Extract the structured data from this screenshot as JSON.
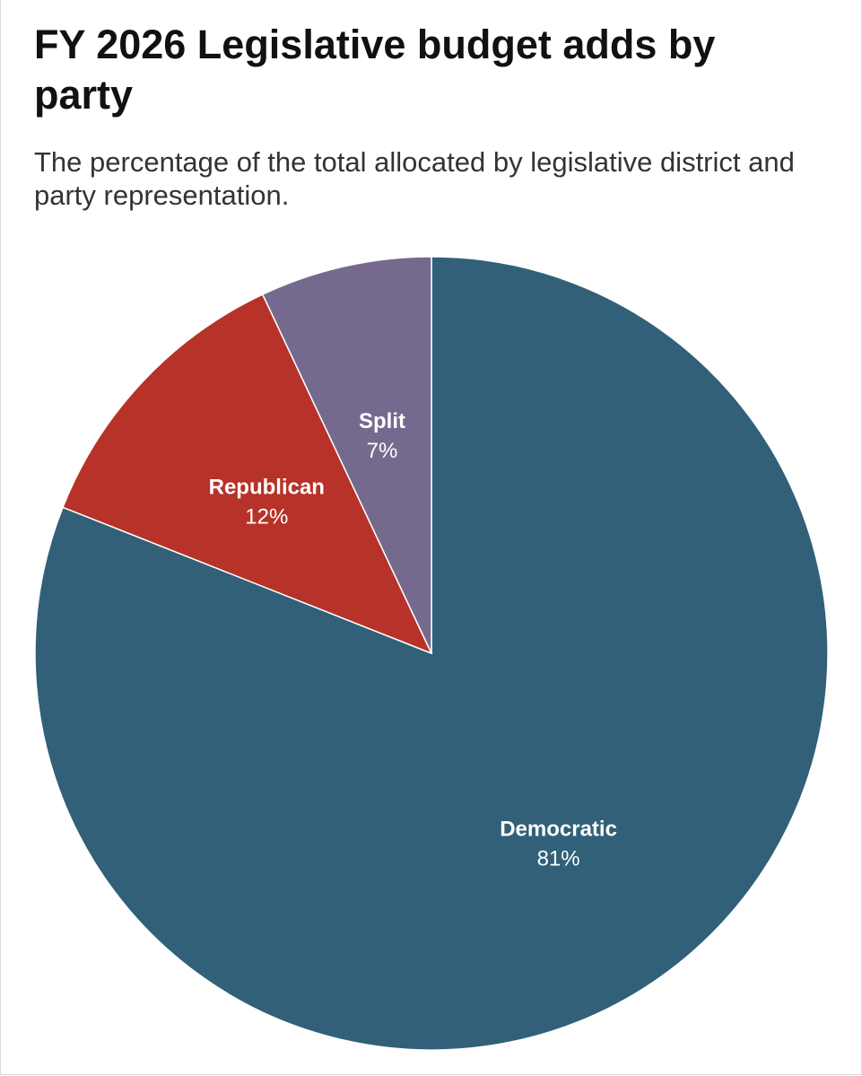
{
  "chart_data": {
    "type": "pie",
    "title": "FY 2026 Legislative budget adds by party",
    "subtitle": "The percentage of the total allocated by legislative district and party representation.",
    "slices": [
      {
        "label": "Democratic",
        "value": 81,
        "display": "81%",
        "color": "#316078"
      },
      {
        "label": "Republican",
        "value": 12,
        "display": "12%",
        "color": "#b73229"
      },
      {
        "label": "Split",
        "value": 7,
        "display": "7%",
        "color": "#756a8e"
      }
    ]
  }
}
